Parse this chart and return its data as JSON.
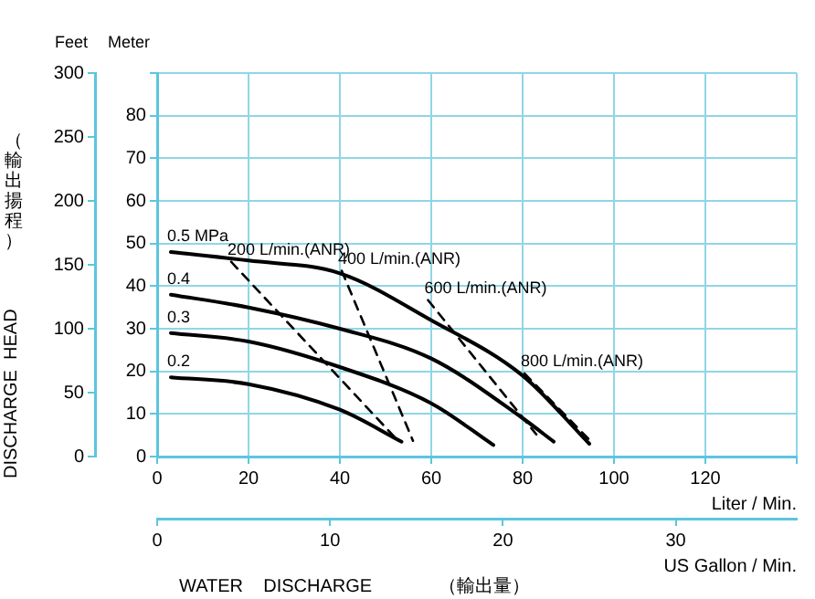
{
  "chart_data": {
    "type": "line",
    "xlabel": "Liter / Min.",
    "x2label": "US Gallon / Min.",
    "ylabel": "Meter",
    "y2label": "Feet",
    "annotations": [
      "DISCHARGE  HEAD",
      "（輸出揚程）",
      "WATER    DISCHARGE",
      "（輸出量）"
    ],
    "xlim": [
      0,
      140
    ],
    "xticks": [
      0,
      20,
      40,
      60,
      80,
      100,
      120,
      {
        "value": 140,
        "label": null
      }
    ],
    "x2lim": [
      0,
      37
    ],
    "x2ticks": [
      0,
      10,
      20,
      30
    ],
    "ylim": [
      0,
      90
    ],
    "yticks": [
      0,
      10,
      20,
      30,
      40,
      50,
      60,
      70,
      80,
      {
        "value": 90,
        "label": null
      }
    ],
    "y2lim": [
      0,
      300
    ],
    "y2ticks": [
      0,
      50,
      100,
      150,
      200,
      250,
      300
    ],
    "grid": true,
    "legend": false,
    "marker": "none",
    "series": [
      {
        "name": "0.5 MPa",
        "color": "#000000",
        "line_style": "solid",
        "x": [
          3,
          20,
          40,
          60,
          80,
          94.6
        ],
        "values": [
          48,
          46,
          43,
          32,
          19,
          3
        ]
      },
      {
        "name": "0.4",
        "color": "#000000",
        "line_style": "solid",
        "x": [
          3,
          20,
          40,
          60,
          80,
          86.8
        ],
        "values": [
          38,
          35,
          30,
          23,
          9,
          3.5
        ]
      },
      {
        "name": "0.3",
        "color": "#000000",
        "line_style": "solid",
        "x": [
          3,
          20,
          40,
          60,
          73.6
        ],
        "values": [
          29,
          27,
          21,
          12.5,
          2.7
        ]
      },
      {
        "name": "0.2",
        "color": "#000000",
        "line_style": "solid",
        "x": [
          3,
          20,
          40,
          53.5
        ],
        "values": [
          18.6,
          17,
          11,
          3.5
        ]
      },
      {
        "name": "200 L/min.(ANR)",
        "color": "#000000",
        "line_style": "dashed",
        "x": [
          16.2,
          52.9
        ],
        "values": [
          45.7,
          3.5
        ]
      },
      {
        "name": "400 L/min.(ANR)",
        "color": "#000000",
        "line_style": "dashed",
        "x": [
          40.4,
          56
        ],
        "values": [
          43.6,
          3.7
        ]
      },
      {
        "name": "600 L/min.(ANR)",
        "color": "#000000",
        "line_style": "dashed",
        "x": [
          59.3,
          83
        ],
        "values": [
          36.7,
          5.2
        ]
      },
      {
        "name": "800 L/min.(ANR)",
        "color": "#000000",
        "line_style": "dashed",
        "x": [
          80.4,
          95
        ],
        "values": [
          19.5,
          3.5
        ]
      }
    ]
  }
}
